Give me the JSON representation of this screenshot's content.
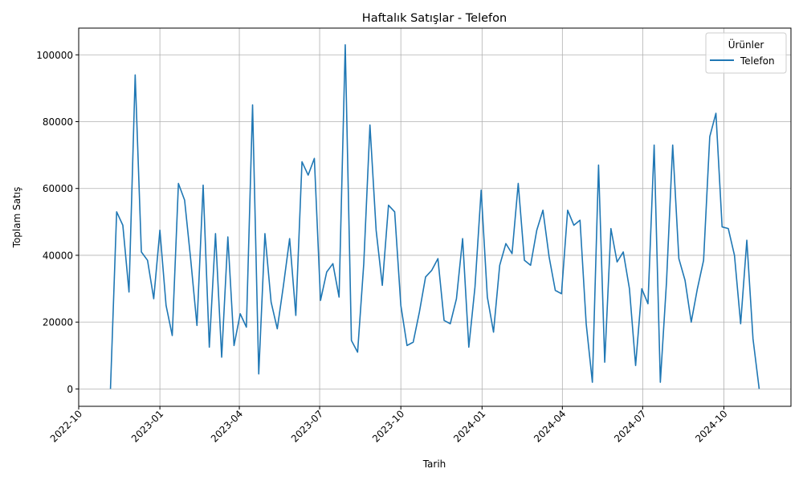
{
  "chart_data": {
    "type": "line",
    "title": "Haftalık Satışlar - Telefon",
    "xlabel": "Tarih",
    "ylabel": "Toplam Satış",
    "grid": true,
    "legend": {
      "title": "Ürünler",
      "placement": "top-right",
      "entries": [
        "Telefon"
      ]
    },
    "xlim": [
      "2022-10-01",
      "2024-12-16"
    ],
    "ylim": [
      -5200,
      108000
    ],
    "x_ticks": [
      "2022-10",
      "2023-01",
      "2023-04",
      "2023-07",
      "2023-10",
      "2024-01",
      "2024-04",
      "2024-07",
      "2024-10"
    ],
    "y_ticks": [
      0,
      20000,
      40000,
      60000,
      80000,
      100000
    ],
    "series": [
      {
        "name": "Telefon",
        "color": "#1f77b4",
        "x": [
          "2022-11-06",
          "2022-11-13",
          "2022-11-20",
          "2022-11-27",
          "2022-12-04",
          "2022-12-11",
          "2022-12-18",
          "2022-12-25",
          "2023-01-01",
          "2023-01-08",
          "2023-01-15",
          "2023-01-22",
          "2023-01-29",
          "2023-02-05",
          "2023-02-12",
          "2023-02-19",
          "2023-02-26",
          "2023-03-05",
          "2023-03-12",
          "2023-03-19",
          "2023-03-26",
          "2023-04-02",
          "2023-04-09",
          "2023-04-16",
          "2023-04-23",
          "2023-04-30",
          "2023-05-07",
          "2023-05-14",
          "2023-05-21",
          "2023-05-28",
          "2023-06-04",
          "2023-06-11",
          "2023-06-18",
          "2023-06-25",
          "2023-07-02",
          "2023-07-09",
          "2023-07-16",
          "2023-07-23",
          "2023-07-30",
          "2023-08-06",
          "2023-08-13",
          "2023-08-20",
          "2023-08-27",
          "2023-09-03",
          "2023-09-10",
          "2023-09-17",
          "2023-09-24",
          "2023-10-01",
          "2023-10-08",
          "2023-10-15",
          "2023-10-22",
          "2023-10-29",
          "2023-11-05",
          "2023-11-12",
          "2023-11-19",
          "2023-11-26",
          "2023-12-03",
          "2023-12-10",
          "2023-12-17",
          "2023-12-24",
          "2023-12-31",
          "2024-01-07",
          "2024-01-14",
          "2024-01-21",
          "2024-01-28",
          "2024-02-04",
          "2024-02-11",
          "2024-02-18",
          "2024-02-25",
          "2024-03-03",
          "2024-03-10",
          "2024-03-17",
          "2024-03-24",
          "2024-03-31",
          "2024-04-07",
          "2024-04-14",
          "2024-04-21",
          "2024-04-28",
          "2024-05-05",
          "2024-05-12",
          "2024-05-19",
          "2024-05-26",
          "2024-06-02",
          "2024-06-09",
          "2024-06-16",
          "2024-06-23",
          "2024-06-30",
          "2024-07-07",
          "2024-07-14",
          "2024-07-21",
          "2024-07-28",
          "2024-08-04",
          "2024-08-11",
          "2024-08-18",
          "2024-08-25",
          "2024-09-01",
          "2024-09-08",
          "2024-09-15",
          "2024-09-22",
          "2024-09-29",
          "2024-10-06",
          "2024-10-13",
          "2024-10-20",
          "2024-10-27",
          "2024-11-03",
          "2024-11-10"
        ],
        "values": [
          0,
          53000,
          49000,
          29000,
          94000,
          41000,
          38500,
          27000,
          47500,
          25000,
          16000,
          61500,
          56500,
          38500,
          19000,
          61000,
          12500,
          46500,
          9500,
          45500,
          13000,
          22500,
          18500,
          85000,
          4500,
          46500,
          26000,
          18000,
          31000,
          45000,
          22000,
          68000,
          64000,
          69000,
          26500,
          35000,
          37500,
          27500,
          103000,
          14500,
          11000,
          37500,
          79000,
          47500,
          31000,
          55000,
          53000,
          25000,
          13000,
          14000,
          23000,
          33500,
          35500,
          39000,
          20500,
          19500,
          27000,
          45000,
          12500,
          30500,
          59500,
          27500,
          17000,
          37000,
          43500,
          40500,
          61500,
          38500,
          37000,
          47500,
          53500,
          39500,
          29500,
          28500,
          53500,
          49000,
          50500,
          19500,
          2000,
          67000,
          8000,
          48000,
          38000,
          41000,
          30000,
          7000,
          30000,
          25500,
          73000,
          2000,
          32000,
          73000,
          39000,
          32500,
          20000,
          30000,
          38500,
          75500,
          82500,
          48500,
          48000,
          40000,
          19500,
          44500,
          15000,
          0
        ]
      }
    ]
  }
}
